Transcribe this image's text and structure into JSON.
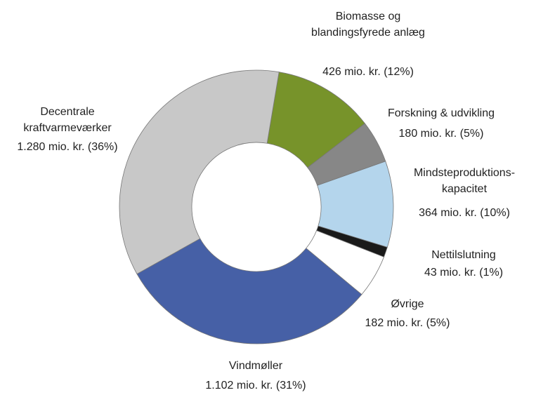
{
  "chart_data": {
    "type": "donut",
    "categories": [
      "Biomasse og blandingsfyrede anlæg",
      "Forskning & udvikling",
      "Mindsteproduktions-kapacitet",
      "Nettilslutning",
      "Øvrige",
      "Vindmøller",
      "Decentrale kraftvarmeværker"
    ],
    "values": [
      426,
      180,
      364,
      43,
      182,
      1102,
      1280
    ],
    "value_labels": [
      "426 mio. kr. (12%)",
      "180 mio. kr. (5%)",
      "364 mio. kr. (10%)",
      "43 mio. kr. (1%)",
      "182 mio. kr. (5%)",
      "1.102 mio. kr. (31%)",
      "1.280 mio. kr. (36%)"
    ],
    "colors": [
      "#77932a",
      "#878787",
      "#b4d5ec",
      "#1a1a1a",
      "#ffffff",
      "#4660a6",
      "#c8c8c8"
    ]
  }
}
